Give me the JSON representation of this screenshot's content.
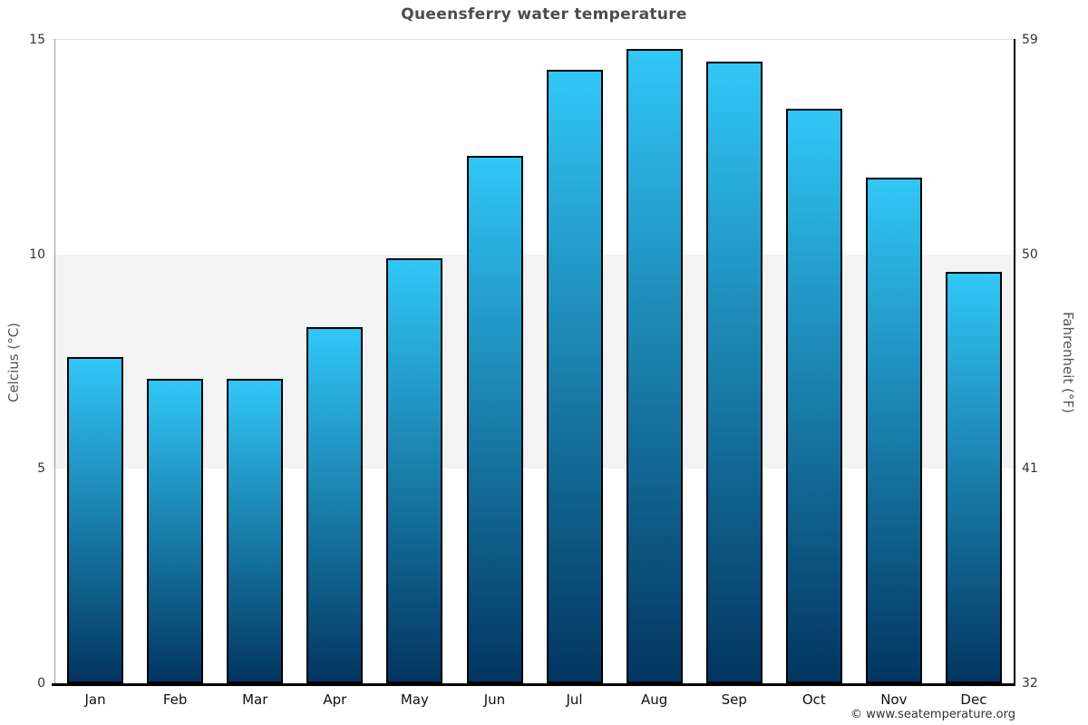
{
  "chart_data": {
    "type": "bar",
    "title": "Queensferry water temperature",
    "categories": [
      "Jan",
      "Feb",
      "Mar",
      "Apr",
      "May",
      "Jun",
      "Jul",
      "Aug",
      "Sep",
      "Oct",
      "Nov",
      "Dec"
    ],
    "values": [
      7.6,
      7.1,
      7.1,
      8.3,
      9.9,
      12.3,
      14.3,
      14.8,
      14.5,
      13.4,
      11.8,
      9.6
    ],
    "ylabel_left": "Celcius (°C)",
    "ylabel_right": "Fahrenheit (°F)",
    "ylim_celsius": [
      0,
      15
    ],
    "ylim_fahrenheit": [
      32,
      59
    ],
    "yticks_celsius": [
      0,
      5,
      10,
      15
    ],
    "yticks_fahrenheit": [
      32,
      41,
      50,
      59
    ],
    "shaded_band_celsius": [
      5,
      10
    ],
    "legend": "none",
    "grid": "single top gridline at 15°C plus shaded band 5-10°C"
  },
  "footer": {
    "credit": "© www.seatemperature.org"
  },
  "colors": {
    "bar_gradient_top": "#31c7f7",
    "bar_gradient_bottom": "#023560",
    "bar_border": "#000000",
    "band": "#f3f3f3",
    "gridline": "#e2e2e2",
    "left_axis_line": "#9a9a9a",
    "right_axis_line": "#000000",
    "bottom_axis_line": "#000000",
    "title_text": "#4d4d4d",
    "axis_label_text": "#555555",
    "tick_text": "#333333",
    "month_text": "#111111",
    "footer_text": "#333333"
  }
}
